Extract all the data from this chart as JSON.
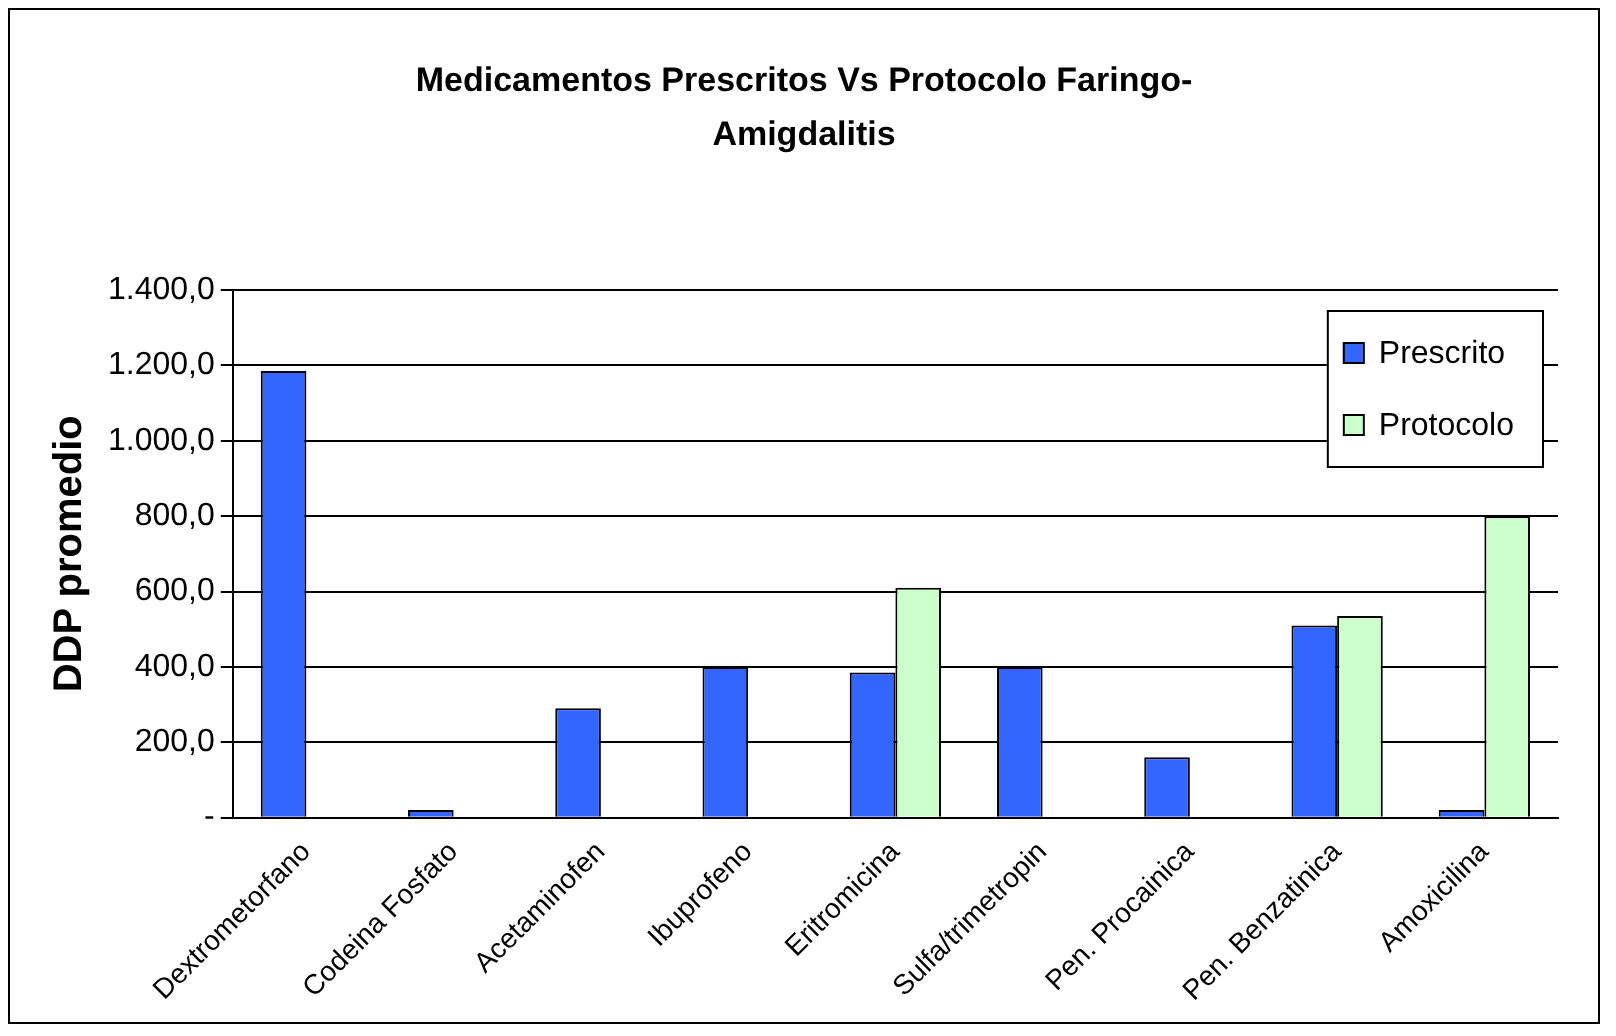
{
  "chart_data": {
    "type": "bar",
    "title": "Medicamentos Prescritos Vs Protocolo Faringo-Amigdalitis",
    "ylabel": "DDP promedio",
    "categories": [
      "Dextrometorfano",
      "Codeina Fosfato",
      "Acetaminofen",
      "Ibuprofeno",
      "Eritromicina",
      "Sulfa/trimetropin",
      "Pen. Procainica",
      "Pen. Benzatinica",
      "Amoxicilina"
    ],
    "series": [
      {
        "name": "Prescrito",
        "color": "#3366ff",
        "values": [
          1185,
          20,
          290,
          400,
          385,
          400,
          160,
          510,
          20
        ]
      },
      {
        "name": "Protocolo",
        "color": "#ccffcc",
        "values": [
          null,
          null,
          null,
          null,
          610,
          null,
          null,
          535,
          800
        ]
      }
    ],
    "ylim": [
      0,
      1400
    ],
    "yticks": [
      {
        "value": 0,
        "label": "-"
      },
      {
        "value": 200,
        "label": "200,0"
      },
      {
        "value": 400,
        "label": "400,0"
      },
      {
        "value": 600,
        "label": "600,0"
      },
      {
        "value": 800,
        "label": "800,0"
      },
      {
        "value": 1000,
        "label": "1.000,0"
      },
      {
        "value": 1200,
        "label": "1.200,0"
      },
      {
        "value": 1400,
        "label": "1.400,0"
      }
    ],
    "grid": "y",
    "legend": "top right"
  }
}
